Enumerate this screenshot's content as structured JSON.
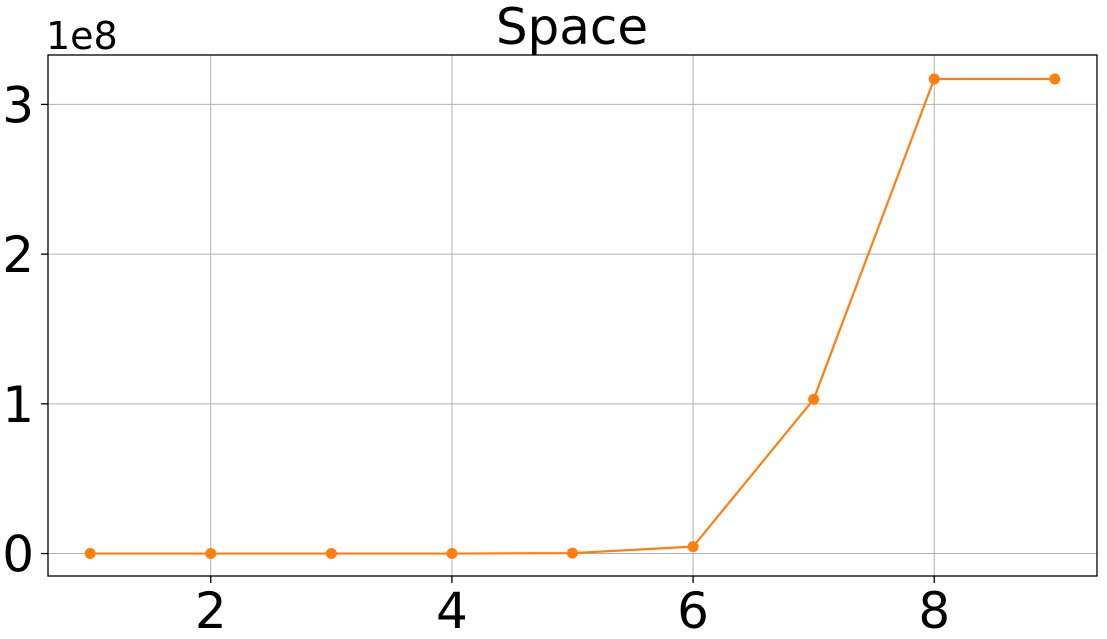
{
  "chart_data": {
    "type": "line",
    "title": "Space",
    "xlabel": "",
    "ylabel": "",
    "y_offset_label": "1e8",
    "xlim": [
      0.65,
      9.35
    ],
    "ylim": [
      -0.15,
      3.33
    ],
    "y_scale_multiplier": 100000000,
    "x_ticks": [
      2,
      4,
      6,
      8
    ],
    "x_tick_labels": [
      "2",
      "4",
      "6",
      "8"
    ],
    "y_ticks": [
      0,
      1,
      2,
      3
    ],
    "y_tick_labels": [
      "0",
      "1",
      "2",
      "3"
    ],
    "grid": true,
    "legend": "none",
    "series": [
      {
        "color": "#ff7f0e",
        "marker": "circle",
        "x": [
          1,
          2,
          3,
          4,
          5,
          6,
          7,
          8,
          9
        ],
        "y": [
          0,
          0,
          0,
          0,
          0.003,
          0.046,
          1.03,
          3.17,
          3.17
        ]
      }
    ]
  }
}
